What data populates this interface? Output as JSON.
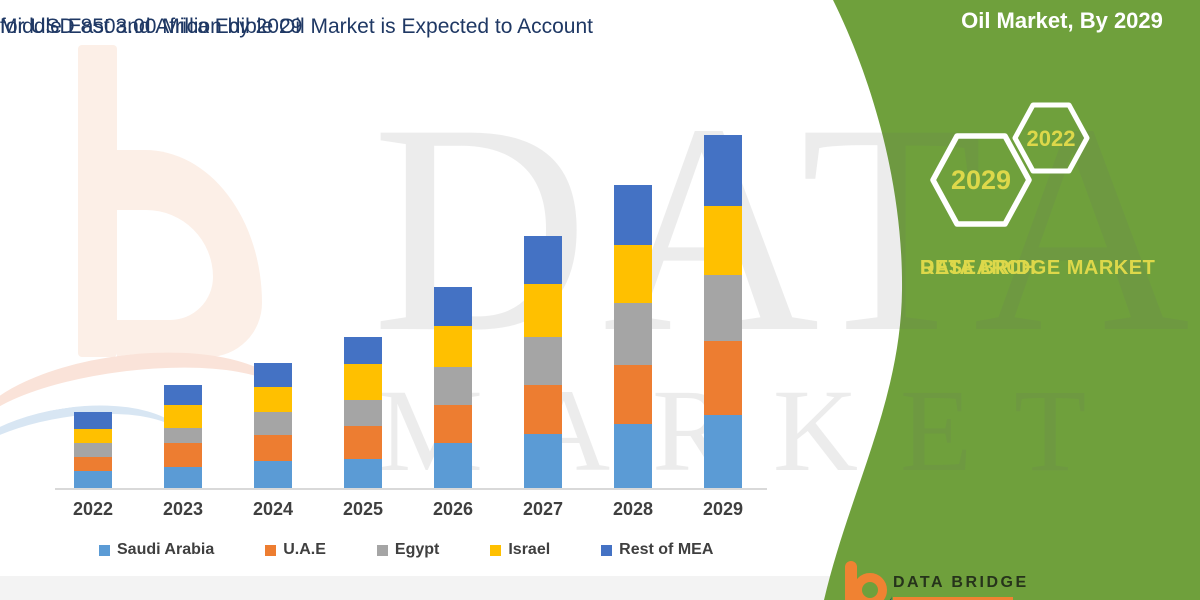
{
  "title": {
    "line1": "Middle East and Africa Edible Oil Market is Expected to Account",
    "line2": "for USD 8503.00 Million by 2029"
  },
  "watermark": {
    "line1": "DATA BRIDGE",
    "line2": "MARKET RESEARCH"
  },
  "side_panel": {
    "heading": "Oil Market, By 2029",
    "hexagons": [
      {
        "year": "2029"
      },
      {
        "year": "2022"
      }
    ],
    "brand_line1": "DATA BRIDGE MARKET",
    "brand_line2": "RESEARCH",
    "green_color": "#6FA03C",
    "accent_text_color": "#DDD84A"
  },
  "footer_logo": {
    "brand": "DATA BRIDGE"
  },
  "chart_data": {
    "type": "bar",
    "stacked": true,
    "title": "Middle East and Africa Edible Oil Market is Expected to Account for USD 8503.00 Million by 2029",
    "unit": "USD Million",
    "categories": [
      "2022",
      "2023",
      "2024",
      "2025",
      "2026",
      "2027",
      "2028",
      "2029"
    ],
    "series": [
      {
        "name": "Saudi Arabia",
        "color": "#5B9BD5",
        "values": [
          410,
          499,
          644,
          699,
          1085,
          1312,
          1553,
          1753
        ]
      },
      {
        "name": "U.A.E",
        "color": "#ED7D31",
        "values": [
          337,
          579,
          644,
          788,
          909,
          1165,
          1406,
          1784
        ]
      },
      {
        "name": "Egypt",
        "color": "#A5A5A5",
        "values": [
          345,
          362,
          538,
          644,
          923,
          1165,
          1488,
          1591
        ]
      },
      {
        "name": "Israel",
        "color": "#FFC000",
        "values": [
          330,
          562,
          603,
          844,
          981,
          1271,
          1406,
          1664
        ]
      },
      {
        "name": "Rest of MEA",
        "color": "#4472C4",
        "values": [
          402,
          475,
          586,
          668,
          948,
          1157,
          1447,
          1711
        ]
      }
    ],
    "estimated_totals": [
      1824,
      2477,
      3015,
      3643,
      4846,
      6070,
      7300,
      8503
    ],
    "legend_position": "bottom",
    "gridlines": false,
    "y_axis_visible": false
  }
}
